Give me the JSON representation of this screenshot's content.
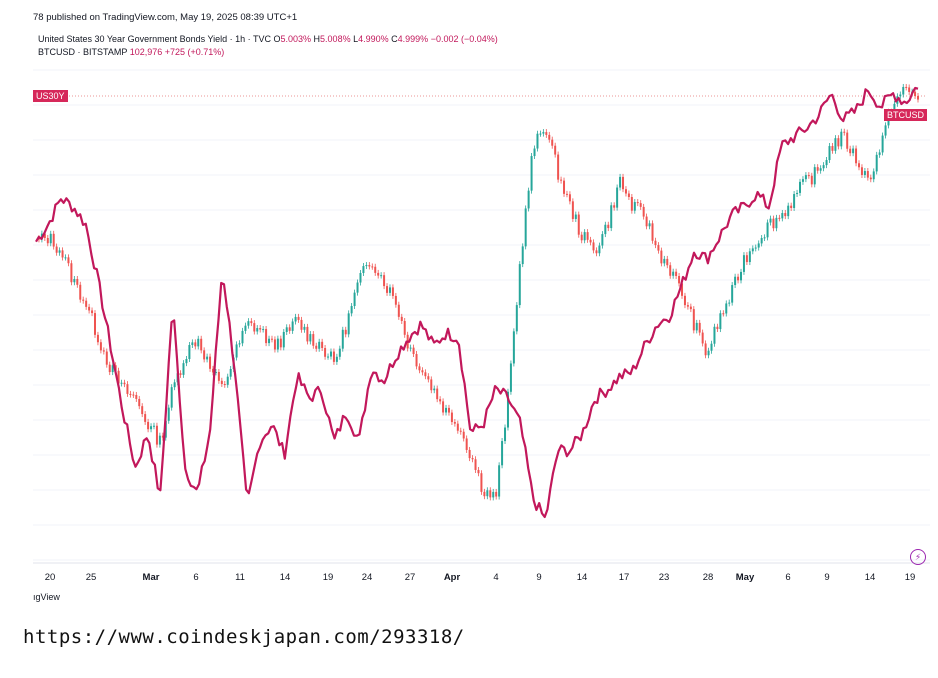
{
  "header": {
    "published": "78 published on TradingView.com, May 19, 2025 08:39 UTC+1"
  },
  "legend": {
    "row1_name": "United States 30 Year Government Bonds Yield · 1h · TVC",
    "row1_o_label": "O",
    "row1_o": "5.003%",
    "row1_h_label": "H",
    "row1_h": "5.008%",
    "row1_l_label": "L",
    "row1_l": "4.990%",
    "row1_c_label": "C",
    "row1_c": "4.999%",
    "row1_change": "−0.002 (−0.04%)",
    "row2_name": "BTCUSD · BITSTAMP",
    "row2_price": "102,976",
    "row2_change": "+725 (+0.71%)"
  },
  "badges": {
    "us30y": "US30Y",
    "btcusd": "BTCUSD"
  },
  "watermark": "ıgView",
  "source_url": "https://www.coindeskjapan.com/293318/",
  "colors": {
    "us30y": "#c2185b",
    "btc_up": "#26a69a",
    "btc_down": "#ef5350",
    "badge": "#d6285a"
  },
  "chart_data": {
    "type": "line",
    "x_ticks": [
      {
        "label": "20",
        "bold": false
      },
      {
        "label": "25",
        "bold": false
      },
      {
        "label": "Mar",
        "bold": true
      },
      {
        "label": "6",
        "bold": false
      },
      {
        "label": "11",
        "bold": false
      },
      {
        "label": "14",
        "bold": false
      },
      {
        "label": "19",
        "bold": false
      },
      {
        "label": "24",
        "bold": false
      },
      {
        "label": "27",
        "bold": false
      },
      {
        "label": "Apr",
        "bold": true
      },
      {
        "label": "4",
        "bold": false
      },
      {
        "label": "9",
        "bold": false
      },
      {
        "label": "14",
        "bold": false
      },
      {
        "label": "17",
        "bold": false
      },
      {
        "label": "23",
        "bold": false
      },
      {
        "label": "28",
        "bold": false
      },
      {
        "label": "May",
        "bold": true
      },
      {
        "label": "6",
        "bold": false
      },
      {
        "label": "9",
        "bold": false
      },
      {
        "label": "14",
        "bold": false
      },
      {
        "label": "19",
        "bold": false
      }
    ],
    "series": [
      {
        "name": "US30Y",
        "relative_level": [
          0.64,
          0.68,
          0.74,
          0.72,
          0.68,
          0.55,
          0.4,
          0.25,
          0.12,
          0.2,
          0.05,
          0.5,
          0.12,
          0.06,
          0.2,
          0.58,
          0.35,
          0.03,
          0.18,
          0.22,
          0.15,
          0.33,
          0.28,
          0.3,
          0.18,
          0.25,
          0.18,
          0.35,
          0.32,
          0.38,
          0.42,
          0.45,
          0.4,
          0.43,
          0.42,
          0.2,
          0.22,
          0.3,
          0.28,
          0.22,
          0.05,
          0.0,
          0.16,
          0.16,
          0.2,
          0.28,
          0.3,
          0.33,
          0.34,
          0.4,
          0.45,
          0.47,
          0.54,
          0.62,
          0.6,
          0.65,
          0.7,
          0.72,
          0.75,
          0.72,
          0.86,
          0.88,
          0.9,
          0.93,
          0.98,
          0.92,
          0.94,
          0.99,
          0.95,
          0.98,
          0.96,
          1.0
        ],
        "color": "#c2185b"
      },
      {
        "name": "BTCUSD",
        "relative_level": [
          0.64,
          0.65,
          0.62,
          0.55,
          0.5,
          0.42,
          0.35,
          0.3,
          0.28,
          0.22,
          0.18,
          0.3,
          0.38,
          0.42,
          0.35,
          0.3,
          0.38,
          0.45,
          0.44,
          0.4,
          0.42,
          0.46,
          0.42,
          0.4,
          0.36,
          0.45,
          0.55,
          0.6,
          0.55,
          0.5,
          0.4,
          0.35,
          0.3,
          0.25,
          0.22,
          0.15,
          0.07,
          0.05,
          0.28,
          0.6,
          0.85,
          0.91,
          0.8,
          0.72,
          0.65,
          0.62,
          0.68,
          0.78,
          0.72,
          0.7,
          0.62,
          0.58,
          0.52,
          0.45,
          0.38,
          0.46,
          0.52,
          0.6,
          0.64,
          0.68,
          0.7,
          0.74,
          0.78,
          0.8,
          0.86,
          0.88,
          0.83,
          0.78,
          0.86,
          0.96,
          0.99,
          0.97
        ],
        "color": "#26a69a"
      }
    ]
  }
}
